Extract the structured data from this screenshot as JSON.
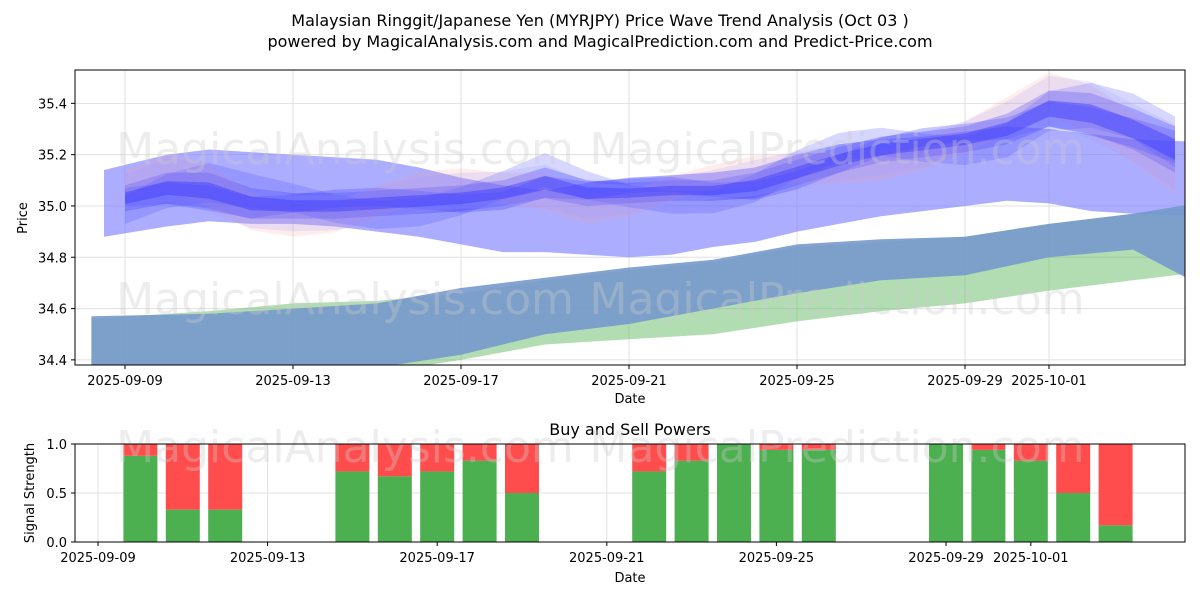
{
  "title_line1": "Malaysian Ringgit/Japanese Yen (MYRJPY) Price Wave Trend Analysis (Oct 03 )",
  "title_line2": "powered by MagicalAnalysis.com and MagicalPrediction.com and Predict-Price.com",
  "watermarks": [
    "MagicalAnalysis.com",
    "MagicalPrediction.com"
  ],
  "colors": {
    "buy": "#4caf50",
    "sell": "#ff4c4c",
    "wave": "#4444ff",
    "band": "#7777ff",
    "green_band": "#66bb66",
    "steel_band": "#7799cc"
  },
  "chart_data": [
    {
      "type": "area",
      "title": "Malaysian Ringgit/Japanese Yen (MYRJPY) Price Wave Trend Analysis (Oct 03 )",
      "xlabel": "Date",
      "ylabel": "Price",
      "ylim": [
        34.38,
        35.53
      ],
      "yticks": [
        "34.4",
        "34.6",
        "34.8",
        "35.0",
        "35.2",
        "35.4"
      ],
      "xticks": [
        "2025-09-09",
        "2025-09-13",
        "2025-09-17",
        "2025-09-21",
        "2025-09-25",
        "2025-09-29",
        "2025-10-01"
      ],
      "price_wave": {
        "day": [
          0,
          1,
          2,
          3,
          4,
          5,
          6,
          7,
          8,
          9,
          10,
          11,
          12,
          13,
          14,
          15,
          16,
          17,
          18,
          19,
          20,
          21,
          22,
          23,
          24,
          25
        ],
        "center": [
          35.03,
          35.07,
          35.06,
          35.01,
          35.0,
          35.0,
          35.01,
          35.02,
          35.03,
          35.05,
          35.09,
          35.05,
          35.05,
          35.06,
          35.06,
          35.08,
          35.13,
          35.18,
          35.22,
          35.24,
          35.26,
          35.3,
          35.38,
          35.36,
          35.3,
          35.22
        ],
        "spread": [
          0.05,
          0.06,
          0.07,
          0.06,
          0.05,
          0.05,
          0.05,
          0.05,
          0.05,
          0.05,
          0.06,
          0.05,
          0.04,
          0.04,
          0.04,
          0.05,
          0.05,
          0.05,
          0.05,
          0.05,
          0.05,
          0.06,
          0.07,
          0.08,
          0.08,
          0.09
        ]
      },
      "wide_band": {
        "day": [
          -0.5,
          1,
          2,
          3,
          4,
          5,
          6,
          7,
          8,
          9,
          10,
          11,
          12,
          13,
          14,
          15,
          16,
          17,
          18,
          19,
          20,
          21,
          22,
          23,
          24,
          25.5
        ],
        "upper": [
          35.14,
          35.2,
          35.22,
          35.21,
          35.2,
          35.19,
          35.18,
          35.15,
          35.11,
          35.08,
          35.06,
          35.09,
          35.11,
          35.12,
          35.13,
          35.15,
          35.2,
          35.24,
          35.26,
          35.27,
          35.29,
          35.31,
          35.3,
          35.28,
          35.26,
          35.25
        ],
        "lower": [
          34.88,
          34.92,
          34.94,
          34.93,
          34.93,
          34.92,
          34.9,
          34.88,
          34.85,
          34.82,
          34.82,
          34.81,
          34.8,
          34.81,
          34.84,
          34.86,
          34.9,
          34.93,
          34.96,
          34.98,
          35.0,
          35.02,
          35.01,
          34.98,
          34.97,
          34.96
        ]
      },
      "green_band": {
        "day": [
          -0.8,
          2,
          4,
          6,
          8,
          10,
          12,
          14,
          16,
          18,
          20,
          22,
          24,
          26
        ],
        "upper": [
          34.56,
          34.59,
          34.62,
          34.63,
          34.66,
          34.71,
          34.75,
          34.78,
          34.84,
          34.86,
          34.88,
          34.93,
          34.97,
          35.0
        ],
        "lower": [
          34.2,
          34.26,
          34.3,
          34.35,
          34.4,
          34.46,
          34.48,
          34.5,
          34.55,
          34.59,
          34.62,
          34.67,
          34.71,
          34.75
        ]
      },
      "steel_band": {
        "day": [
          -0.8,
          2,
          4,
          6,
          8,
          10,
          12,
          14,
          16,
          18,
          20,
          22,
          24,
          25.5
        ],
        "upper": [
          34.57,
          34.58,
          34.6,
          34.62,
          34.68,
          34.72,
          34.76,
          34.79,
          34.85,
          34.87,
          34.88,
          34.93,
          34.97,
          35.01
        ],
        "lower": [
          34.2,
          34.28,
          34.32,
          34.37,
          34.42,
          34.5,
          34.54,
          34.6,
          34.66,
          34.71,
          34.73,
          34.8,
          34.83,
          34.7
        ]
      }
    },
    {
      "type": "bar",
      "title": "Buy and Sell Powers",
      "xlabel": "Date",
      "ylabel": "Signal Strength",
      "ylim": [
        0,
        1.0
      ],
      "yticks": [
        "0.0",
        "0.5",
        "1.0"
      ],
      "xticks": [
        "2025-09-09",
        "2025-09-13",
        "2025-09-17",
        "2025-09-21",
        "2025-09-25",
        "2025-09-29",
        "2025-10-01"
      ],
      "dates": [
        "2025-09-10",
        "2025-09-11",
        "2025-09-12",
        "2025-09-15",
        "2025-09-16",
        "2025-09-17",
        "2025-09-18",
        "2025-09-19",
        "2025-09-22",
        "2025-09-23",
        "2025-09-24",
        "2025-09-25",
        "2025-09-26",
        "2025-09-29",
        "2025-09-30",
        "2025-10-01",
        "2025-10-02",
        "2025-10-03"
      ],
      "buy": [
        0.88,
        0.33,
        0.33,
        0.72,
        0.67,
        0.72,
        0.83,
        0.5,
        0.72,
        0.83,
        1.0,
        0.94,
        0.94,
        1.0,
        0.94,
        0.83,
        0.5,
        0.17
      ],
      "sell": [
        0.12,
        0.67,
        0.67,
        0.28,
        0.33,
        0.28,
        0.17,
        0.5,
        0.28,
        0.17,
        0.0,
        0.06,
        0.06,
        0.0,
        0.06,
        0.17,
        0.5,
        0.83
      ]
    }
  ]
}
